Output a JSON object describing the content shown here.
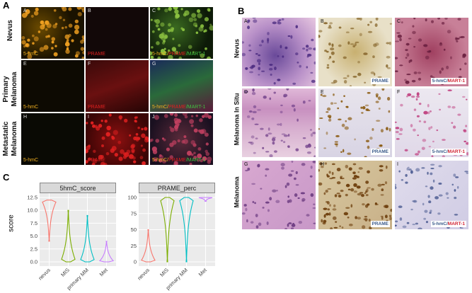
{
  "panel_A": {
    "letter": "A",
    "rows": [
      "Nevus",
      "Primary\nMelanoma",
      "Metastatic\nMelanoma"
    ],
    "tiles": [
      {
        "id": "A",
        "cap1": "5-hmC",
        "cap2": "",
        "cap3": ""
      },
      {
        "id": "B",
        "cap1": "PRAME",
        "cap2": "",
        "cap3": ""
      },
      {
        "id": "C",
        "cap1": "5-hmC/",
        "cap2": "PRAME",
        "cap3": "/MART-1"
      },
      {
        "id": "E",
        "cap1": "5-hmC",
        "cap2": "",
        "cap3": ""
      },
      {
        "id": "F",
        "cap1": "PRAME",
        "cap2": "",
        "cap3": ""
      },
      {
        "id": "G",
        "cap1": "5-hmC/",
        "cap2": "PRAME",
        "cap3": "/MART-1"
      },
      {
        "id": "H",
        "cap1": "5-hmC",
        "cap2": "",
        "cap3": ""
      },
      {
        "id": "I",
        "cap1": "PRAME",
        "cap2": "",
        "cap3": ""
      },
      {
        "id": "J",
        "cap1": "5-hmC/",
        "cap2": "PRAME",
        "cap3": "/MART-1"
      }
    ]
  },
  "panel_B": {
    "letter": "B",
    "rows": [
      "Nevus",
      "Melanoma In Situ",
      "Melanoma"
    ],
    "tiles": [
      {
        "id": "A",
        "tag1": "",
        "tag2": ""
      },
      {
        "id": "B",
        "tag1": "PRAME",
        "tag2": ""
      },
      {
        "id": "C",
        "tag1": "5-hmC/",
        "tag2": "MART-1"
      },
      {
        "id": "D",
        "tag1": "",
        "tag2": ""
      },
      {
        "id": "E",
        "tag1": "PRAME",
        "tag2": ""
      },
      {
        "id": "F",
        "tag1": "5-hmC/",
        "tag2": "MART-1"
      },
      {
        "id": "G",
        "tag1": "",
        "tag2": ""
      },
      {
        "id": "H",
        "tag1": "PRAME",
        "tag2": ""
      },
      {
        "id": "I",
        "tag1": "5-hmC/",
        "tag2": "MART-1"
      }
    ]
  },
  "panel_C": {
    "letter": "C"
  },
  "colors": {
    "nevus": "#f8766d",
    "MIS": "#7cae00",
    "primary MM": "#00bfc4",
    "Met": "#c77cff"
  },
  "chart_data": [
    {
      "type": "violin",
      "title": "5hmC_score",
      "ylabel": "score",
      "categories": [
        "nevus",
        "MIS",
        "primary MM",
        "Met"
      ],
      "ylim": [
        0,
        12.5
      ],
      "yticks": [
        "0.0",
        "2.5",
        "5.0",
        "7.5",
        "10.0",
        "12.5"
      ],
      "grid": true,
      "series": [
        {
          "name": "nevus",
          "values": [
            4,
            12
          ]
        },
        {
          "name": "MIS",
          "values": [
            0,
            10
          ]
        },
        {
          "name": "primary MM",
          "values": [
            0,
            9
          ]
        },
        {
          "name": "Met",
          "values": [
            0,
            4
          ]
        }
      ]
    },
    {
      "type": "violin",
      "title": "PRAME_perc",
      "categories": [
        "nevus",
        "MIS",
        "primary MM",
        "Met"
      ],
      "ylim": [
        0,
        100
      ],
      "yticks": [
        "0",
        "25",
        "50",
        "75",
        "100"
      ],
      "grid": true,
      "series": [
        {
          "name": "nevus",
          "values": [
            0,
            50
          ]
        },
        {
          "name": "MIS",
          "values": [
            0,
            100
          ]
        },
        {
          "name": "primary MM",
          "values": [
            0,
            100
          ]
        },
        {
          "name": "Met",
          "values": [
            94,
            100
          ]
        }
      ]
    }
  ]
}
